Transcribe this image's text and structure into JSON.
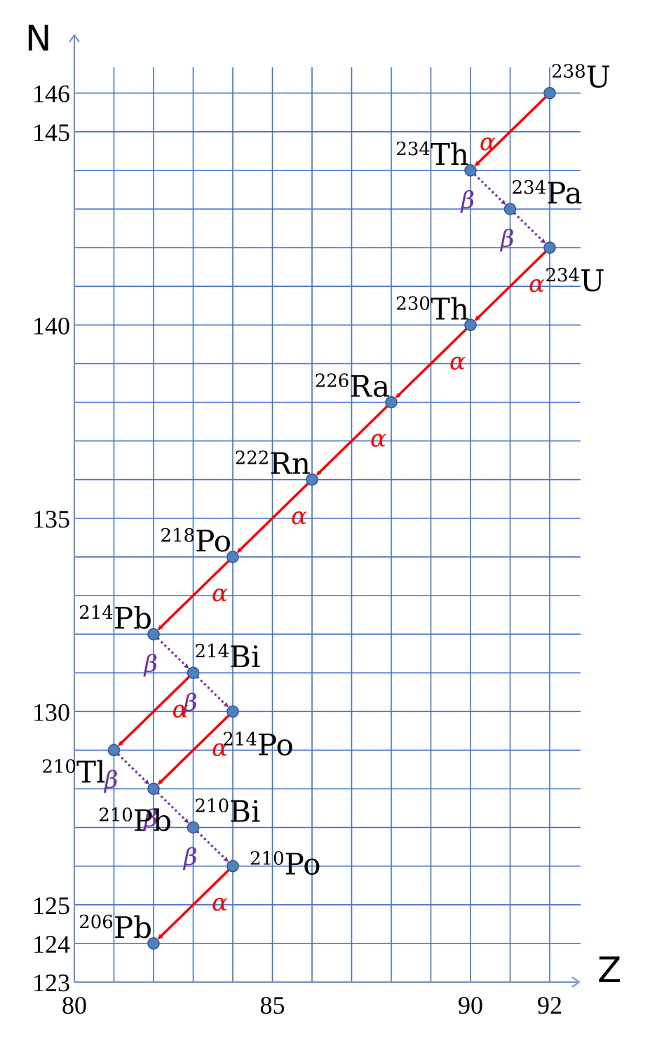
{
  "chart_data": {
    "type": "scatter",
    "xlabel": "Z",
    "ylabel": "N",
    "xlim": [
      80,
      92.8
    ],
    "ylim": [
      123,
      146.7
    ],
    "x_ticks": [
      "80",
      "85",
      "90",
      "92"
    ],
    "y_ticks": [
      "123",
      "124",
      "125",
      "130",
      "135",
      "140",
      "145",
      "146"
    ],
    "grid": true,
    "nuclides": [
      {
        "id": "U238",
        "mass": "238",
        "symbol": "U",
        "z": 92,
        "n": 146,
        "label_pos": "right-above"
      },
      {
        "id": "Th234",
        "mass": "234",
        "symbol": "Th",
        "z": 90,
        "n": 144,
        "label_pos": "left-above"
      },
      {
        "id": "Pa234",
        "mass": "234",
        "symbol": "Pa",
        "z": 91,
        "n": 143,
        "label_pos": "right-above"
      },
      {
        "id": "U234",
        "mass": "234",
        "symbol": "U",
        "z": 92,
        "n": 142,
        "label_pos": "below"
      },
      {
        "id": "Th230",
        "mass": "230",
        "symbol": "Th",
        "z": 90,
        "n": 140,
        "label_pos": "left-above"
      },
      {
        "id": "Ra226",
        "mass": "226",
        "symbol": "Ra",
        "z": 88,
        "n": 138,
        "label_pos": "left-above"
      },
      {
        "id": "Rn222",
        "mass": "222",
        "symbol": "Rn",
        "z": 86,
        "n": 136,
        "label_pos": "left-above"
      },
      {
        "id": "Po218",
        "mass": "218",
        "symbol": "Po",
        "z": 84,
        "n": 134,
        "label_pos": "left-above"
      },
      {
        "id": "Pb214",
        "mass": "214",
        "symbol": "Pb",
        "z": 82,
        "n": 132,
        "label_pos": "left-above"
      },
      {
        "id": "Bi214",
        "mass": "214",
        "symbol": "Bi",
        "z": 83,
        "n": 131,
        "label_pos": "right-above"
      },
      {
        "id": "Po214",
        "mass": "214",
        "symbol": "Po",
        "z": 84,
        "n": 130,
        "label_pos": "below"
      },
      {
        "id": "Tl210",
        "mass": "210",
        "symbol": "Tl",
        "z": 81,
        "n": 129,
        "label_pos": "left-below"
      },
      {
        "id": "Pb210",
        "mass": "210",
        "symbol": "Pb",
        "z": 82,
        "n": 128,
        "label_pos": "below-left"
      },
      {
        "id": "Bi210",
        "mass": "210",
        "symbol": "Bi",
        "z": 83,
        "n": 127,
        "label_pos": "right-above"
      },
      {
        "id": "Po210",
        "mass": "210",
        "symbol": "Po",
        "z": 84,
        "n": 126,
        "label_pos": "right"
      },
      {
        "id": "Pb206",
        "mass": "206",
        "symbol": "Pb",
        "z": 82,
        "n": 124,
        "label_pos": "left-above"
      }
    ],
    "decays": [
      {
        "from": "U238",
        "to": "Th234",
        "type": "alpha",
        "label": "α",
        "label_side": "left"
      },
      {
        "from": "Th234",
        "to": "Pa234",
        "type": "beta",
        "label": "β",
        "label_side": "left"
      },
      {
        "from": "Pa234",
        "to": "U234",
        "type": "beta",
        "label": "β",
        "label_side": "left"
      },
      {
        "from": "U234",
        "to": "Th230",
        "type": "alpha",
        "label": "α",
        "label_side": "right"
      },
      {
        "from": "Th230",
        "to": "Ra226",
        "type": "alpha",
        "label": "α",
        "label_side": "right"
      },
      {
        "from": "Ra226",
        "to": "Rn222",
        "type": "alpha",
        "label": "α",
        "label_side": "right"
      },
      {
        "from": "Rn222",
        "to": "Po218",
        "type": "alpha",
        "label": "α",
        "label_side": "right"
      },
      {
        "from": "Po218",
        "to": "Pb214",
        "type": "alpha",
        "label": "α",
        "label_side": "right"
      },
      {
        "from": "Pb214",
        "to": "Bi214",
        "type": "beta",
        "label": "β",
        "label_side": "left"
      },
      {
        "from": "Bi214",
        "to": "Po214",
        "type": "beta",
        "label": "β",
        "label_side": "left"
      },
      {
        "from": "Bi214",
        "to": "Tl210",
        "type": "alpha",
        "label": "α",
        "label_side": "right"
      },
      {
        "from": "Po214",
        "to": "Pb210",
        "type": "alpha",
        "label": "α",
        "label_side": "right"
      },
      {
        "from": "Tl210",
        "to": "Pb210",
        "type": "beta",
        "label": "β",
        "label_side": "left"
      },
      {
        "from": "Pb210",
        "to": "Bi210",
        "type": "beta",
        "label": "β",
        "label_side": "left"
      },
      {
        "from": "Bi210",
        "to": "Po210",
        "type": "beta",
        "label": "β",
        "label_side": "left"
      },
      {
        "from": "Po210",
        "to": "Pb206",
        "type": "alpha",
        "label": "α",
        "label_side": "right"
      }
    ],
    "colors": {
      "grid": "#4472c4",
      "axis": "#6f8fc9",
      "alpha": "#ff0000",
      "beta": "#7030a0",
      "point_fill": "#4f81bd",
      "point_stroke": "#2f5597"
    }
  }
}
